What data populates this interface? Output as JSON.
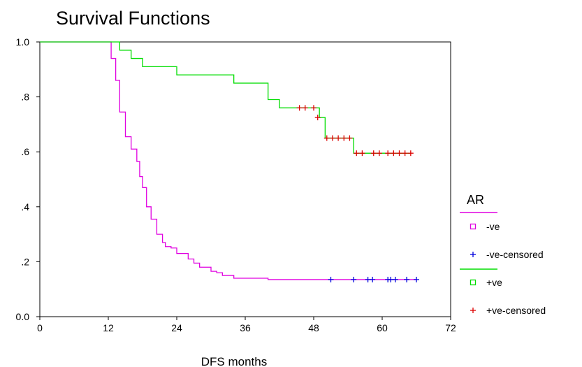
{
  "chart_data": {
    "type": "line",
    "title": "Survival Functions",
    "xlabel": "DFS months",
    "ylabel": "",
    "xlim": [
      0,
      72
    ],
    "ylim": [
      0,
      1.0
    ],
    "x_ticks": [
      0,
      12,
      24,
      36,
      48,
      60,
      72
    ],
    "x_tick_labels": [
      "0",
      "12",
      "24",
      "36",
      "48",
      "60",
      "72"
    ],
    "y_ticks": [
      0,
      0.2,
      0.4,
      0.6,
      0.8,
      1.0
    ],
    "y_tick_labels": [
      "0.0",
      ".2",
      ".4",
      ".6",
      ".8",
      "1.0"
    ],
    "grid": false,
    "legend": {
      "title": "AR",
      "placement": "right",
      "entries": [
        {
          "label": "-ve",
          "symbol": "line-square",
          "color": "#e000e0"
        },
        {
          "label": "-ve-censored",
          "symbol": "plus",
          "color": "#0000dd"
        },
        {
          "label": "+ve",
          "symbol": "line-square",
          "color": "#00dd00"
        },
        {
          "label": "+ve-censored",
          "symbol": "plus",
          "color": "#dd0000"
        }
      ]
    },
    "series": [
      {
        "name": "-ve",
        "color": "#e000e0",
        "step_x": [
          0,
          12,
          12.5,
          13.3,
          14,
          15,
          16,
          17,
          17.5,
          18,
          18.7,
          19.5,
          20.5,
          21.5,
          22,
          23,
          24,
          26,
          27,
          28,
          30,
          31,
          32,
          34,
          40,
          66
        ],
        "step_y": [
          1.0,
          1.0,
          0.94,
          0.86,
          0.745,
          0.655,
          0.61,
          0.565,
          0.51,
          0.47,
          0.4,
          0.355,
          0.3,
          0.27,
          0.255,
          0.25,
          0.23,
          0.21,
          0.195,
          0.18,
          0.165,
          0.16,
          0.15,
          0.14,
          0.135,
          0.135
        ]
      },
      {
        "name": "+ve",
        "color": "#00dd00",
        "step_x": [
          0,
          14,
          16,
          18,
          24,
          34,
          40,
          42,
          49,
          50,
          55,
          65
        ],
        "step_y": [
          1.0,
          0.97,
          0.94,
          0.91,
          0.88,
          0.85,
          0.79,
          0.76,
          0.725,
          0.65,
          0.595,
          0.595
        ]
      },
      {
        "name": "-ve-censored",
        "color": "#0000dd",
        "points": [
          [
            51,
            0.135
          ],
          [
            55,
            0.135
          ],
          [
            57.5,
            0.135
          ],
          [
            58.3,
            0.135
          ],
          [
            61,
            0.135
          ],
          [
            61.5,
            0.135
          ],
          [
            62.3,
            0.135
          ],
          [
            64.3,
            0.135
          ],
          [
            66,
            0.135
          ]
        ]
      },
      {
        "name": "+ve-censored",
        "color": "#dd0000",
        "points": [
          [
            45.5,
            0.76
          ],
          [
            46.5,
            0.76
          ],
          [
            48,
            0.76
          ],
          [
            48.7,
            0.725
          ],
          [
            50.3,
            0.65
          ],
          [
            51.3,
            0.65
          ],
          [
            52.3,
            0.65
          ],
          [
            53.3,
            0.65
          ],
          [
            54.3,
            0.65
          ],
          [
            55.5,
            0.595
          ],
          [
            56.5,
            0.595
          ],
          [
            58.5,
            0.595
          ],
          [
            59.5,
            0.595
          ],
          [
            61,
            0.595
          ],
          [
            62,
            0.595
          ],
          [
            63,
            0.595
          ],
          [
            64,
            0.595
          ],
          [
            65,
            0.595
          ]
        ]
      }
    ]
  }
}
